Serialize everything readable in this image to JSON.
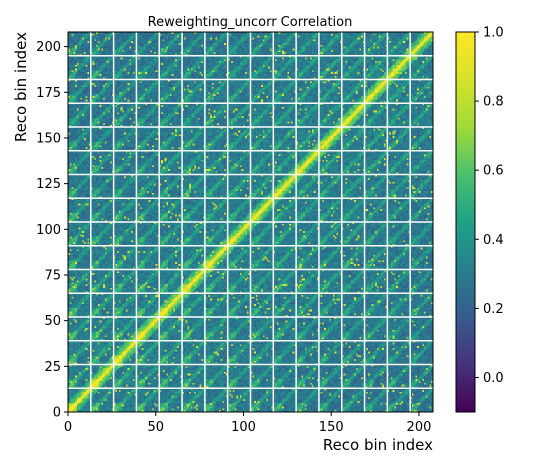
{
  "chart_data": {
    "type": "heatmap",
    "title": "Reweighting_uncorr Correlation",
    "xlabel": "Reco bin index",
    "ylabel": "Reco bin index",
    "n_bins": 208,
    "xlim": [
      0,
      208
    ],
    "ylim": [
      0,
      208
    ],
    "x_ticks": [
      0,
      50,
      100,
      150,
      200
    ],
    "y_ticks": [
      0,
      25,
      50,
      75,
      100,
      125,
      150,
      175,
      200
    ],
    "block_boundaries": [
      13,
      26,
      39,
      52,
      65,
      78,
      91,
      104,
      117,
      130,
      143,
      156,
      169,
      182,
      195
    ],
    "block_size": 13,
    "diagonal_value": 1.0,
    "value_range": [
      -0.1,
      1.0
    ],
    "colormap": "viridis",
    "colorbar_ticks": [
      0.0,
      0.2,
      0.4,
      0.6,
      0.8,
      1.0
    ],
    "colorbar_tick_labels": [
      "0.0",
      "0.2",
      "0.4",
      "0.6",
      "0.8",
      "1.0"
    ],
    "grid": false,
    "block_line_color": "#ffffff"
  }
}
